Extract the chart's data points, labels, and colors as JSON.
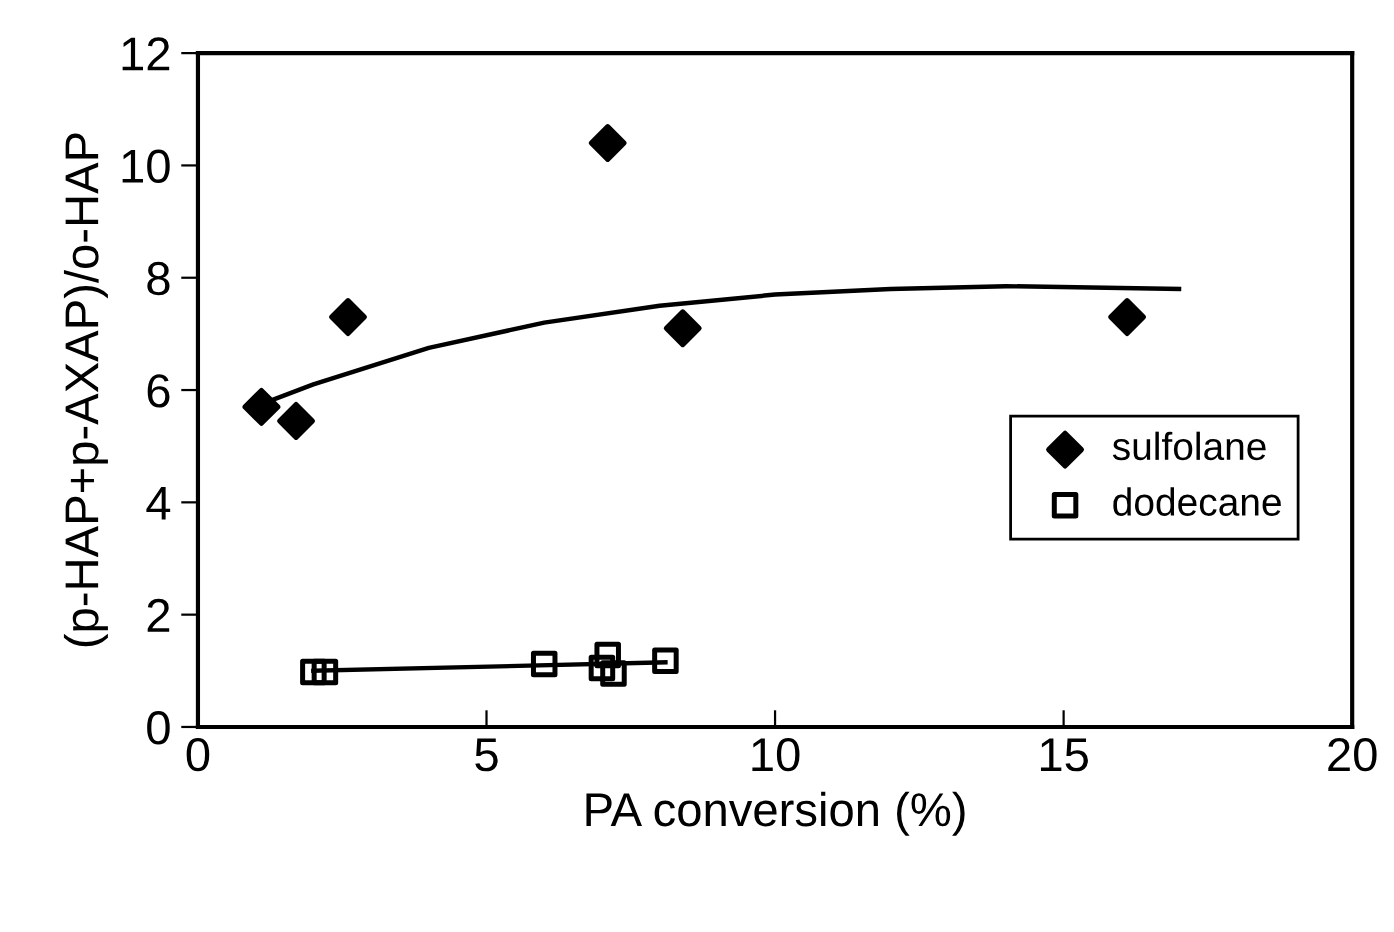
{
  "chart_data": {
    "type": "scatter",
    "xlabel": "PA conversion (%)",
    "ylabel": "(p-HAP+p-AXAP)/o-HAP",
    "xlim": [
      0,
      20
    ],
    "xticks": [
      0,
      5,
      10,
      15,
      20
    ],
    "ylim": [
      0,
      12
    ],
    "yticks": [
      0,
      2,
      4,
      6,
      8,
      10,
      12
    ],
    "grid": false,
    "legend": "right",
    "series": [
      {
        "name": "sulfolane",
        "marker": "diamond",
        "color": "#000000",
        "x": [
          1.1,
          1.7,
          2.6,
          7.1,
          8.4,
          16.1
        ],
        "values": [
          5.7,
          5.45,
          7.3,
          10.4,
          7.1,
          7.3
        ]
      },
      {
        "name": "dodecane",
        "marker": "square",
        "color": "#000000",
        "x": [
          2.0,
          2.2,
          6.0,
          7.0,
          7.1,
          7.2,
          8.1
        ],
        "values": [
          0.98,
          0.98,
          1.12,
          1.05,
          1.28,
          0.95,
          1.18
        ]
      },
      {
        "type": "line",
        "color": "#000000",
        "x": [
          1.1,
          2,
          4,
          6,
          8,
          10,
          12,
          14,
          17
        ],
        "values": [
          5.75,
          6.1,
          6.75,
          7.2,
          7.5,
          7.7,
          7.8,
          7.85,
          7.8
        ]
      },
      {
        "type": "line",
        "color": "#000000",
        "x": [
          2.0,
          8.1
        ],
        "values": [
          1.0,
          1.15
        ]
      }
    ]
  }
}
